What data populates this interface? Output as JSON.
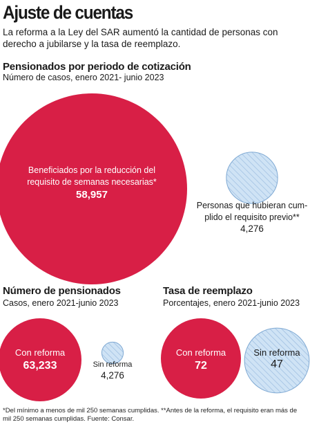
{
  "title": "Ajuste de cuentas",
  "subtitle": "La reforma a la Ley del SAR aumentó la cantidad de personas con derecho a jubilarse y la tasa de reemplazo.",
  "colors": {
    "red": "#d81f46",
    "light_blue": "#cfe3f5",
    "blue_stroke": "#7fa9d3",
    "hatch": "#9cbde0"
  },
  "chart_data": [
    {
      "type": "bubble",
      "title": "Pensionados por periodo de cotización",
      "subtitle": "Número de casos, enero 2021- junio 2023",
      "items": [
        {
          "label_lines": [
            "Beneficiados por la reducción del",
            "requisito de semanas necesarias*"
          ],
          "value": 58957,
          "value_label": "58,957",
          "style": "red"
        },
        {
          "label_lines": [
            "Personas que hubieran cum-",
            "plido el requisito previo**"
          ],
          "value": 4276,
          "value_label": "4,276",
          "style": "hatched"
        }
      ]
    },
    {
      "type": "bubble",
      "title": "Número de pensionados",
      "subtitle": "Casos, enero 2021-junio 2023",
      "items": [
        {
          "label_lines": [
            "Con reforma"
          ],
          "value": 63233,
          "value_label": "63,233",
          "style": "red"
        },
        {
          "label_lines": [
            "Sin reforma"
          ],
          "value": 4276,
          "value_label": "4,276",
          "style": "hatched"
        }
      ]
    },
    {
      "type": "bubble",
      "title": "Tasa de reemplazo",
      "subtitle": "Porcentajes, enero 2021-junio 2023",
      "items": [
        {
          "label_lines": [
            "Con reforma"
          ],
          "value": 72,
          "value_label": "72",
          "style": "red"
        },
        {
          "label_lines": [
            "Sin reforma"
          ],
          "value": 47,
          "value_label": "47",
          "style": "hatched"
        }
      ]
    }
  ],
  "footnote": "*Del mínimo a menos de mil 250 semanas cumplidas. **Antes de la reforma, el requisito eran más de mil 250 semanas cumplidas. Fuente: Consar."
}
